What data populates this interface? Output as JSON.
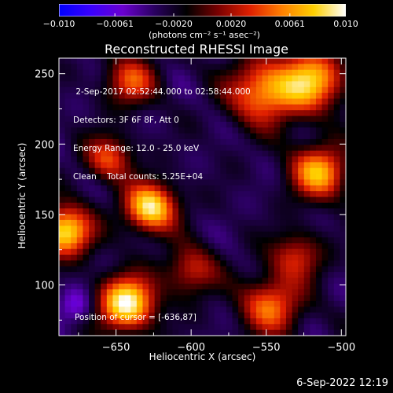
{
  "colorbar": {
    "min_label": "−0.010",
    "max_label": "0.010",
    "tick_labels": [
      "−0.010",
      "−0.0061",
      "−0.0020",
      "0.0020",
      "0.0061",
      "0.010"
    ],
    "tick_values": [
      -0.01,
      -0.0061,
      -0.002,
      0.002,
      0.0061,
      0.01
    ],
    "units": "(photons cm⁻² s⁻¹ asec⁻²)",
    "colors": [
      "#0000ff",
      "#3a00ff",
      "#6a00d0",
      "#2a0060",
      "#000000",
      "#7a0000",
      "#e02000",
      "#ff8000",
      "#ffd000",
      "#ffffff"
    ]
  },
  "title": "Reconstructed RHESSI Image",
  "info_lines": [
    " 2-Sep-2017 02:52:44.000 to 02:58:44.000",
    "Detectors: 3F 6F 8F, Att 0",
    "Energy Range: 12.0 - 25.0 keV",
    "Clean    Total counts: 5.25E+04"
  ],
  "position_text": "Position of cursor = [-636,87]",
  "timestamp": "6-Sep-2022 12:19",
  "chart_data": {
    "type": "heatmap",
    "title": "Reconstructed RHESSI Image",
    "xlabel": "Heliocentric X (arcsec)",
    "ylabel": "Heliocentric Y (arcsec)",
    "xlim": [
      -688,
      -497
    ],
    "ylim": [
      64,
      261
    ],
    "x_ticks": [
      -650,
      -600,
      -550,
      -500
    ],
    "x_tick_labels": [
      "−650",
      "−600",
      "−550",
      "−500"
    ],
    "y_ticks": [
      100,
      150,
      200,
      250
    ],
    "y_tick_labels": [
      "100",
      "150",
      "200",
      "250"
    ],
    "value_range": [
      -0.01,
      0.01
    ],
    "sources": [
      {
        "x": -627,
        "y": 155,
        "sigma": 12,
        "value": 0.009
      },
      {
        "x": -643,
        "y": 87,
        "sigma": 13,
        "value": 0.01
      },
      {
        "x": -684,
        "y": 138,
        "sigma": 12,
        "value": 0.009
      },
      {
        "x": -515,
        "y": 180,
        "sigma": 13,
        "value": 0.007
      },
      {
        "x": -552,
        "y": 237,
        "sigma": 16,
        "value": 0.006
      },
      {
        "x": -520,
        "y": 245,
        "sigma": 15,
        "value": 0.007
      },
      {
        "x": -547,
        "y": 85,
        "sigma": 14,
        "value": 0.005
      },
      {
        "x": -640,
        "y": 245,
        "sigma": 12,
        "value": 0.004
      },
      {
        "x": -655,
        "y": 190,
        "sigma": 11,
        "value": 0.004
      },
      {
        "x": -530,
        "y": 120,
        "sigma": 12,
        "value": 0.003
      },
      {
        "x": -600,
        "y": 110,
        "sigma": 12,
        "value": 0.003
      },
      {
        "x": -677,
        "y": 85,
        "sigma": 9,
        "value": -0.006
      }
    ]
  }
}
